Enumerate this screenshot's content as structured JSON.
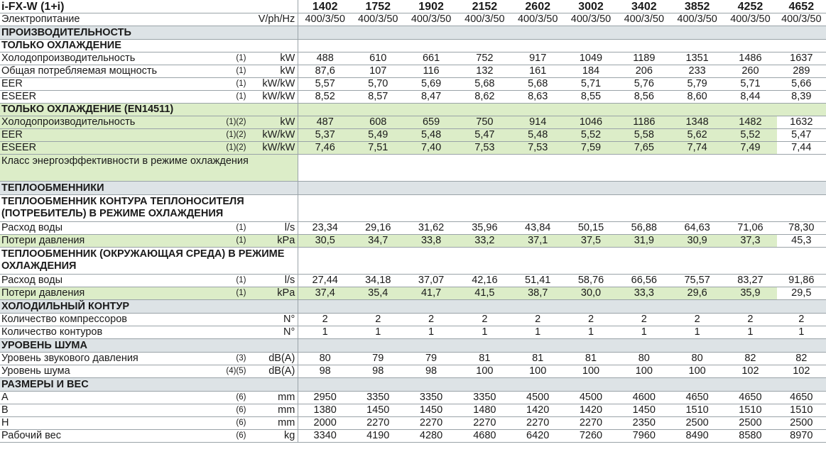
{
  "header": {
    "model": "i-FX-W (1+i)",
    "models": [
      "1402",
      "1752",
      "1902",
      "2152",
      "2602",
      "3002",
      "3402",
      "3852",
      "4252",
      "4652"
    ]
  },
  "power_row": {
    "label": "Электропитание",
    "unit": "V/ph/Hz",
    "values": [
      "400/3/50",
      "400/3/50",
      "400/3/50",
      "400/3/50",
      "400/3/50",
      "400/3/50",
      "400/3/50",
      "400/3/50",
      "400/3/50",
      "400/3/50"
    ]
  },
  "sections": {
    "performance": "ПРОИЗВОДИТЕЛЬНОСТЬ",
    "cooling_only": "ТОЛЬКО ОХЛАЖДЕНИЕ",
    "cooling_en": "ТОЛЬКО ОХЛАЖДЕНИЕ (EN14511)",
    "exchangers": "ТЕПЛООБМЕННИКИ",
    "exch_user": "ТЕПЛООБМЕННИК КОНТУРА ТЕПЛОНОСИТЕЛЯ (ПОТРЕБИТЕЛЬ) В РЕЖИМЕ ОХЛАЖДЕНИЯ",
    "exch_env": "ТЕПЛООБМЕННИК (ОКРУЖАЮЩАЯ СРЕДА) В РЕЖИМЕ ОХЛАЖДЕНИЯ",
    "refrigerant": "ХОЛОДИЛЬНЫЙ КОНТУР",
    "noise": "УРОВЕНЬ ШУМА",
    "dims": "РАЗМЕРЫ И ВЕС"
  },
  "rows": {
    "cool_capacity": {
      "label": "Холодопроизводительность",
      "note": "(1)",
      "unit": "kW",
      "values": [
        "488",
        "610",
        "661",
        "752",
        "917",
        "1049",
        "1189",
        "1351",
        "1486",
        "1637"
      ]
    },
    "cool_power": {
      "label": "Общая потребляемая мощность",
      "note": "(1)",
      "unit": "kW",
      "values": [
        "87,6",
        "107",
        "116",
        "132",
        "161",
        "184",
        "206",
        "233",
        "260",
        "289"
      ]
    },
    "eer": {
      "label": "EER",
      "note": "(1)",
      "unit": "kW/kW",
      "values": [
        "5,57",
        "5,70",
        "5,69",
        "5,68",
        "5,68",
        "5,71",
        "5,76",
        "5,79",
        "5,71",
        "5,66"
      ]
    },
    "eseer": {
      "label": "ESEER",
      "note": "(1)",
      "unit": "kW/kW",
      "values": [
        "8,52",
        "8,57",
        "8,47",
        "8,62",
        "8,63",
        "8,55",
        "8,56",
        "8,60",
        "8,44",
        "8,39"
      ]
    },
    "en_capacity": {
      "label": "Холодопроизводительность",
      "note": "(1)(2)",
      "unit": "kW",
      "values": [
        "487",
        "608",
        "659",
        "750",
        "914",
        "1046",
        "1186",
        "1348",
        "1482",
        "1632"
      ]
    },
    "en_eer": {
      "label": "EER",
      "note": "(1)(2)",
      "unit": "kW/kW",
      "values": [
        "5,37",
        "5,49",
        "5,48",
        "5,47",
        "5,48",
        "5,52",
        "5,58",
        "5,62",
        "5,52",
        "5,47"
      ]
    },
    "en_eseer": {
      "label": "ESEER",
      "note": "(1)(2)",
      "unit": "kW/kW",
      "values": [
        "7,46",
        "7,51",
        "7,40",
        "7,53",
        "7,53",
        "7,59",
        "7,65",
        "7,74",
        "7,49",
        "7,44"
      ]
    },
    "energy_class": {
      "label": "Класс энергоэффективности в режиме охлаждения"
    },
    "user_flow": {
      "label": "Расход воды",
      "note": "(1)",
      "unit": "l/s",
      "values": [
        "23,34",
        "29,16",
        "31,62",
        "35,96",
        "43,84",
        "50,15",
        "56,88",
        "64,63",
        "71,06",
        "78,30"
      ]
    },
    "user_dp": {
      "label": "Потери давления",
      "note": "(1)",
      "unit": "kPa",
      "values": [
        "30,5",
        "34,7",
        "33,8",
        "33,2",
        "37,1",
        "37,5",
        "31,9",
        "30,9",
        "37,3",
        "45,3"
      ]
    },
    "env_flow": {
      "label": "Расход воды",
      "note": "(1)",
      "unit": "l/s",
      "values": [
        "27,44",
        "34,18",
        "37,07",
        "42,16",
        "51,41",
        "58,76",
        "66,56",
        "75,57",
        "83,27",
        "91,86"
      ]
    },
    "env_dp": {
      "label": "Потери давления",
      "note": "(1)",
      "unit": "kPa",
      "values": [
        "37,4",
        "35,4",
        "41,7",
        "41,5",
        "38,7",
        "30,0",
        "33,3",
        "29,6",
        "35,9",
        "29,5"
      ]
    },
    "compressors": {
      "label": "Количество компрессоров",
      "note": "",
      "unit": "N°",
      "values": [
        "2",
        "2",
        "2",
        "2",
        "2",
        "2",
        "2",
        "2",
        "2",
        "2"
      ]
    },
    "circuits": {
      "label": "Количество контуров",
      "note": "",
      "unit": "N°",
      "values": [
        "1",
        "1",
        "1",
        "1",
        "1",
        "1",
        "1",
        "1",
        "1",
        "1"
      ]
    },
    "sound_pressure": {
      "label": "Уровень звукового давления",
      "note": "(3)",
      "unit": "dB(A)",
      "values": [
        "80",
        "79",
        "79",
        "81",
        "81",
        "81",
        "80",
        "80",
        "82",
        "82"
      ]
    },
    "sound_power": {
      "label": "Уровень шума",
      "note": "(4)(5)",
      "unit": "dB(A)",
      "values": [
        "98",
        "98",
        "98",
        "100",
        "100",
        "100",
        "100",
        "100",
        "102",
        "102"
      ]
    },
    "dim_a": {
      "label": "A",
      "note": "(6)",
      "unit": "mm",
      "values": [
        "2950",
        "3350",
        "3350",
        "3350",
        "4500",
        "4500",
        "4600",
        "4650",
        "4650",
        "4650"
      ]
    },
    "dim_b": {
      "label": "B",
      "note": "(6)",
      "unit": "mm",
      "values": [
        "1380",
        "1450",
        "1450",
        "1480",
        "1420",
        "1420",
        "1450",
        "1510",
        "1510",
        "1510"
      ]
    },
    "dim_h": {
      "label": "H",
      "note": "(6)",
      "unit": "mm",
      "values": [
        "2000",
        "2270",
        "2270",
        "2270",
        "2270",
        "2270",
        "2350",
        "2500",
        "2500",
        "2500"
      ]
    },
    "weight": {
      "label": "Рабочий вес",
      "note": "(6)",
      "unit": "kg",
      "values": [
        "3340",
        "4190",
        "4280",
        "4680",
        "6420",
        "7260",
        "7960",
        "8490",
        "8580",
        "8970"
      ]
    }
  }
}
